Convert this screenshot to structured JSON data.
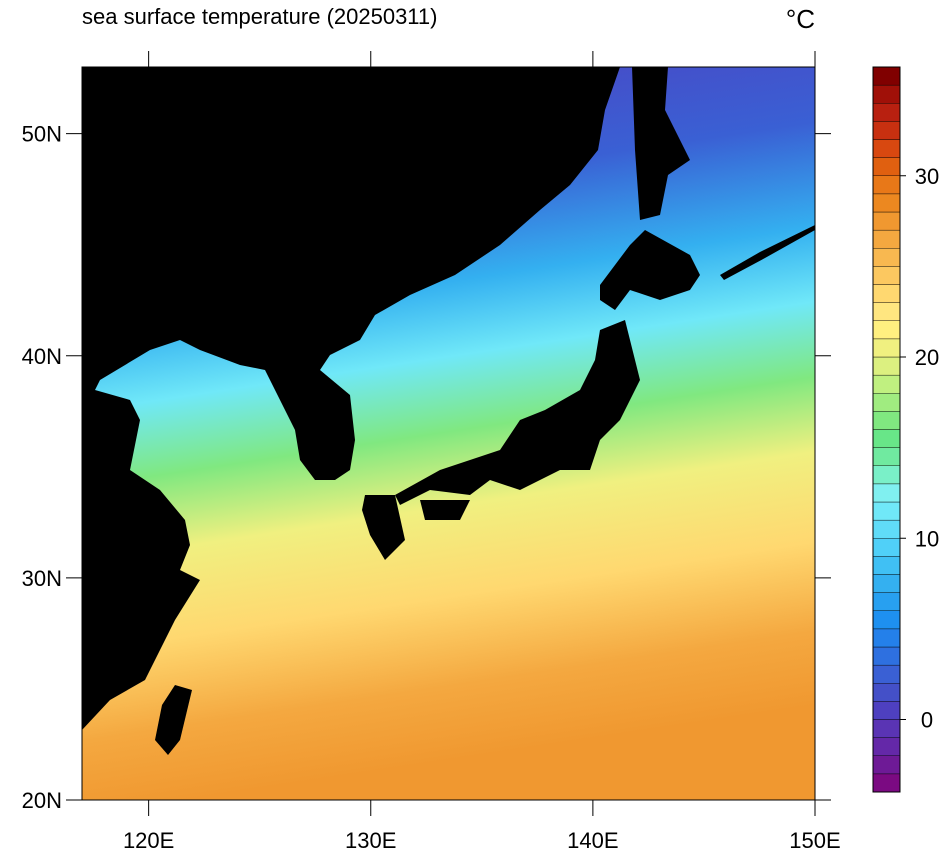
{
  "title": "sea surface temperature (20250311)",
  "unit": "°C",
  "map": {
    "xlim": [
      117,
      150
    ],
    "ylim": [
      20,
      53
    ],
    "xticks": [
      {
        "value": 120,
        "label": "120E"
      },
      {
        "value": 130,
        "label": "130E"
      },
      {
        "value": 140,
        "label": "140E"
      },
      {
        "value": 150,
        "label": "150E"
      }
    ],
    "yticks": [
      {
        "value": 20,
        "label": "20N"
      },
      {
        "value": 30,
        "label": "30N"
      },
      {
        "value": 40,
        "label": "40N"
      },
      {
        "value": 50,
        "label": "50N"
      }
    ]
  },
  "colorbar": {
    "lim": [
      -4,
      36
    ],
    "ticks": [
      0,
      10,
      20,
      30
    ],
    "colors": [
      "#7b0a82",
      "#6e1a96",
      "#6428a8",
      "#5a34b4",
      "#4e40c0",
      "#4450c8",
      "#3a60d4",
      "#2e70e0",
      "#2480ea",
      "#1e90f0",
      "#28a0f0",
      "#34b0f0",
      "#40c0f4",
      "#50d0f8",
      "#60dcf8",
      "#70e8f8",
      "#80f0f0",
      "#7af0c8",
      "#70eaa0",
      "#68e688",
      "#80e880",
      "#a0ec80",
      "#c0f080",
      "#dcf080",
      "#f0f080",
      "#fff080",
      "#ffe680",
      "#ffd870",
      "#fcc860",
      "#f8b850",
      "#f4a840",
      "#f09830",
      "#ec8820",
      "#e87818",
      "#e06010",
      "#d84810",
      "#c83010",
      "#b82010",
      "#a01008",
      "#800000"
    ]
  }
}
